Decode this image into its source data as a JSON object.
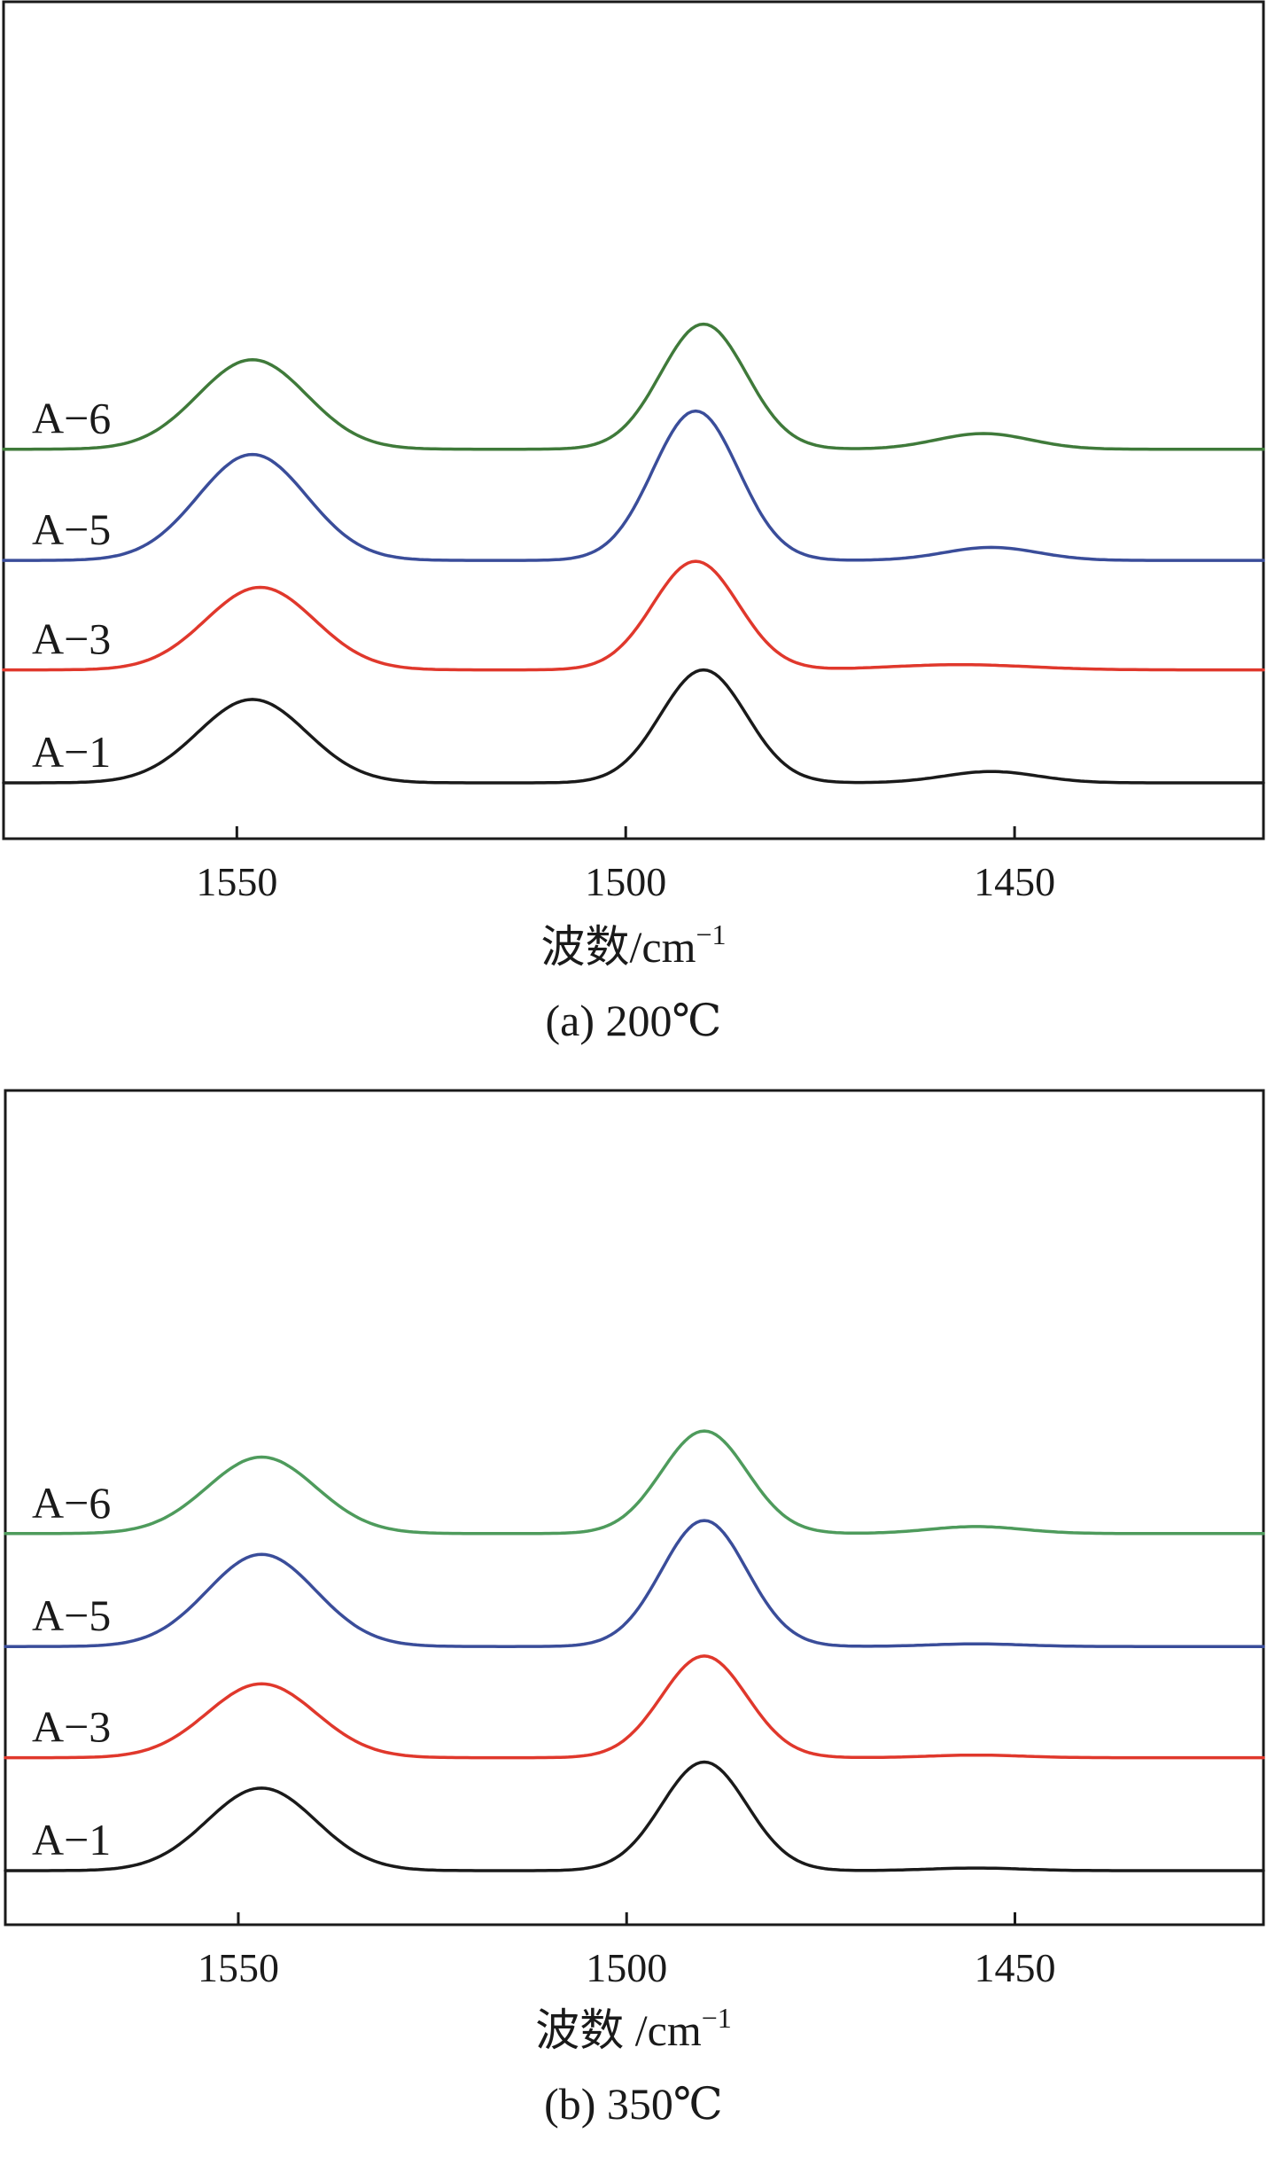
{
  "chart_data": [
    {
      "type": "line",
      "title": "(a) 200℃",
      "xlabel": "波数/cm",
      "xlabel_superscript": "−1",
      "xlim": [
        1580,
        1418
      ],
      "x_reversed": true,
      "xticks": [
        1550,
        1500,
        1450
      ],
      "xtick_labels": [
        "1550",
        "1500",
        "1450"
      ],
      "yticks": "none",
      "grid": false,
      "series": [
        {
          "name": "A-1",
          "color": "#1a1a1a",
          "baseline": 0.0,
          "peaks": [
            {
              "center": 1548,
              "height": 0.96,
              "width": 7
            },
            {
              "center": 1490,
              "height": 1.3,
              "width": 5.5
            },
            {
              "center": 1453,
              "height": 0.13,
              "width": 6
            }
          ]
        },
        {
          "name": "A-3",
          "color": "#e0382c",
          "baseline": 1.3,
          "peaks": [
            {
              "center": 1547,
              "height": 0.95,
              "width": 7
            },
            {
              "center": 1491,
              "height": 1.25,
              "width": 5.5
            },
            {
              "center": 1457,
              "height": 0.06,
              "width": 9
            }
          ]
        },
        {
          "name": "A-5",
          "color": "#3a4d9a",
          "baseline": 2.56,
          "peaks": [
            {
              "center": 1548,
              "height": 1.22,
              "width": 7
            },
            {
              "center": 1491,
              "height": 1.72,
              "width": 5.5
            },
            {
              "center": 1453,
              "height": 0.15,
              "width": 6
            }
          ]
        },
        {
          "name": "A-6",
          "color": "#3f7a3a",
          "baseline": 3.84,
          "peaks": [
            {
              "center": 1548,
              "height": 1.03,
              "width": 7
            },
            {
              "center": 1490,
              "height": 1.44,
              "width": 5.5
            },
            {
              "center": 1454,
              "height": 0.18,
              "width": 6
            }
          ]
        }
      ]
    },
    {
      "type": "line",
      "title": "(b) 350℃",
      "xlabel": "波数 /cm",
      "xlabel_superscript": "−1",
      "xlim": [
        1580,
        1418
      ],
      "x_reversed": true,
      "xticks": [
        1550,
        1500,
        1450
      ],
      "xtick_labels": [
        "1550",
        "1500",
        "1450"
      ],
      "yticks": "none",
      "grid": false,
      "series": [
        {
          "name": "A-1",
          "color": "#1a1a1a",
          "baseline": 0.0,
          "peaks": [
            {
              "center": 1547,
              "height": 0.95,
              "width": 7
            },
            {
              "center": 1490,
              "height": 1.25,
              "width": 5.5
            },
            {
              "center": 1455,
              "height": 0.03,
              "width": 6
            }
          ]
        },
        {
          "name": "A-3",
          "color": "#e0382c",
          "baseline": 1.3,
          "peaks": [
            {
              "center": 1547,
              "height": 0.85,
              "width": 7
            },
            {
              "center": 1490,
              "height": 1.17,
              "width": 5.5
            },
            {
              "center": 1455,
              "height": 0.03,
              "width": 6
            }
          ]
        },
        {
          "name": "A-5",
          "color": "#3a4d9a",
          "baseline": 2.58,
          "peaks": [
            {
              "center": 1547,
              "height": 1.06,
              "width": 7
            },
            {
              "center": 1490,
              "height": 1.45,
              "width": 5.5
            },
            {
              "center": 1455,
              "height": 0.03,
              "width": 6
            }
          ]
        },
        {
          "name": "A-6",
          "color": "#4e9b5c",
          "baseline": 3.88,
          "peaks": [
            {
              "center": 1547,
              "height": 0.88,
              "width": 7
            },
            {
              "center": 1490,
              "height": 1.18,
              "width": 5.5
            },
            {
              "center": 1455,
              "height": 0.08,
              "width": 6
            }
          ]
        }
      ]
    }
  ]
}
